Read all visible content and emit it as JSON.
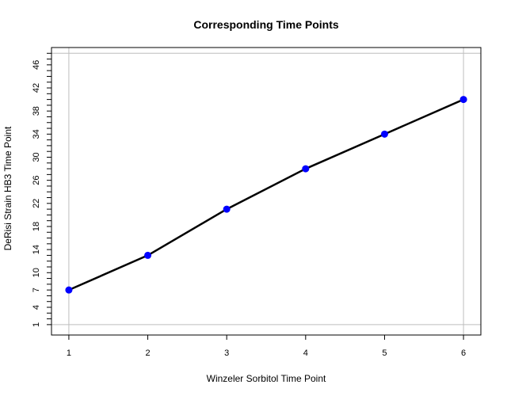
{
  "chart_data": {
    "type": "line",
    "title": "Corresponding Time Points",
    "xlabel": "Winzeler Sorbitol Time Point",
    "ylabel": "DeRisi Strain HB3 Time Point",
    "x": [
      1,
      2,
      3,
      4,
      5,
      6
    ],
    "y": [
      7,
      13,
      21,
      28,
      34,
      40
    ],
    "xlim": [
      0.78,
      6.22
    ],
    "ylim": [
      -0.8,
      49
    ],
    "x_ticks": [
      "1",
      "2",
      "3",
      "4",
      "5",
      "6"
    ],
    "y_tick_labels": [
      "1",
      "4",
      "7",
      "10",
      "14",
      "18",
      "22",
      "26",
      "30",
      "34",
      "38",
      "42",
      "46"
    ],
    "y_minor_ticks": [
      1,
      2,
      3,
      4,
      5,
      6,
      7,
      8,
      9,
      10,
      11,
      12,
      13,
      14,
      15,
      16,
      17,
      18,
      19,
      20,
      21,
      22,
      23,
      24,
      25,
      26,
      27,
      28,
      29,
      30,
      31,
      32,
      33,
      34,
      35,
      36,
      37,
      38,
      39,
      40,
      41,
      42,
      43,
      44,
      45,
      46,
      47,
      48
    ],
    "reference_lines": {
      "vertical_x": [
        1,
        6
      ],
      "horizontal_y": [
        1,
        48
      ]
    },
    "grid": false,
    "legend": "none",
    "line_color": "#000000",
    "point_color": "#0000ff",
    "reference_line_color": "#bebebe"
  }
}
